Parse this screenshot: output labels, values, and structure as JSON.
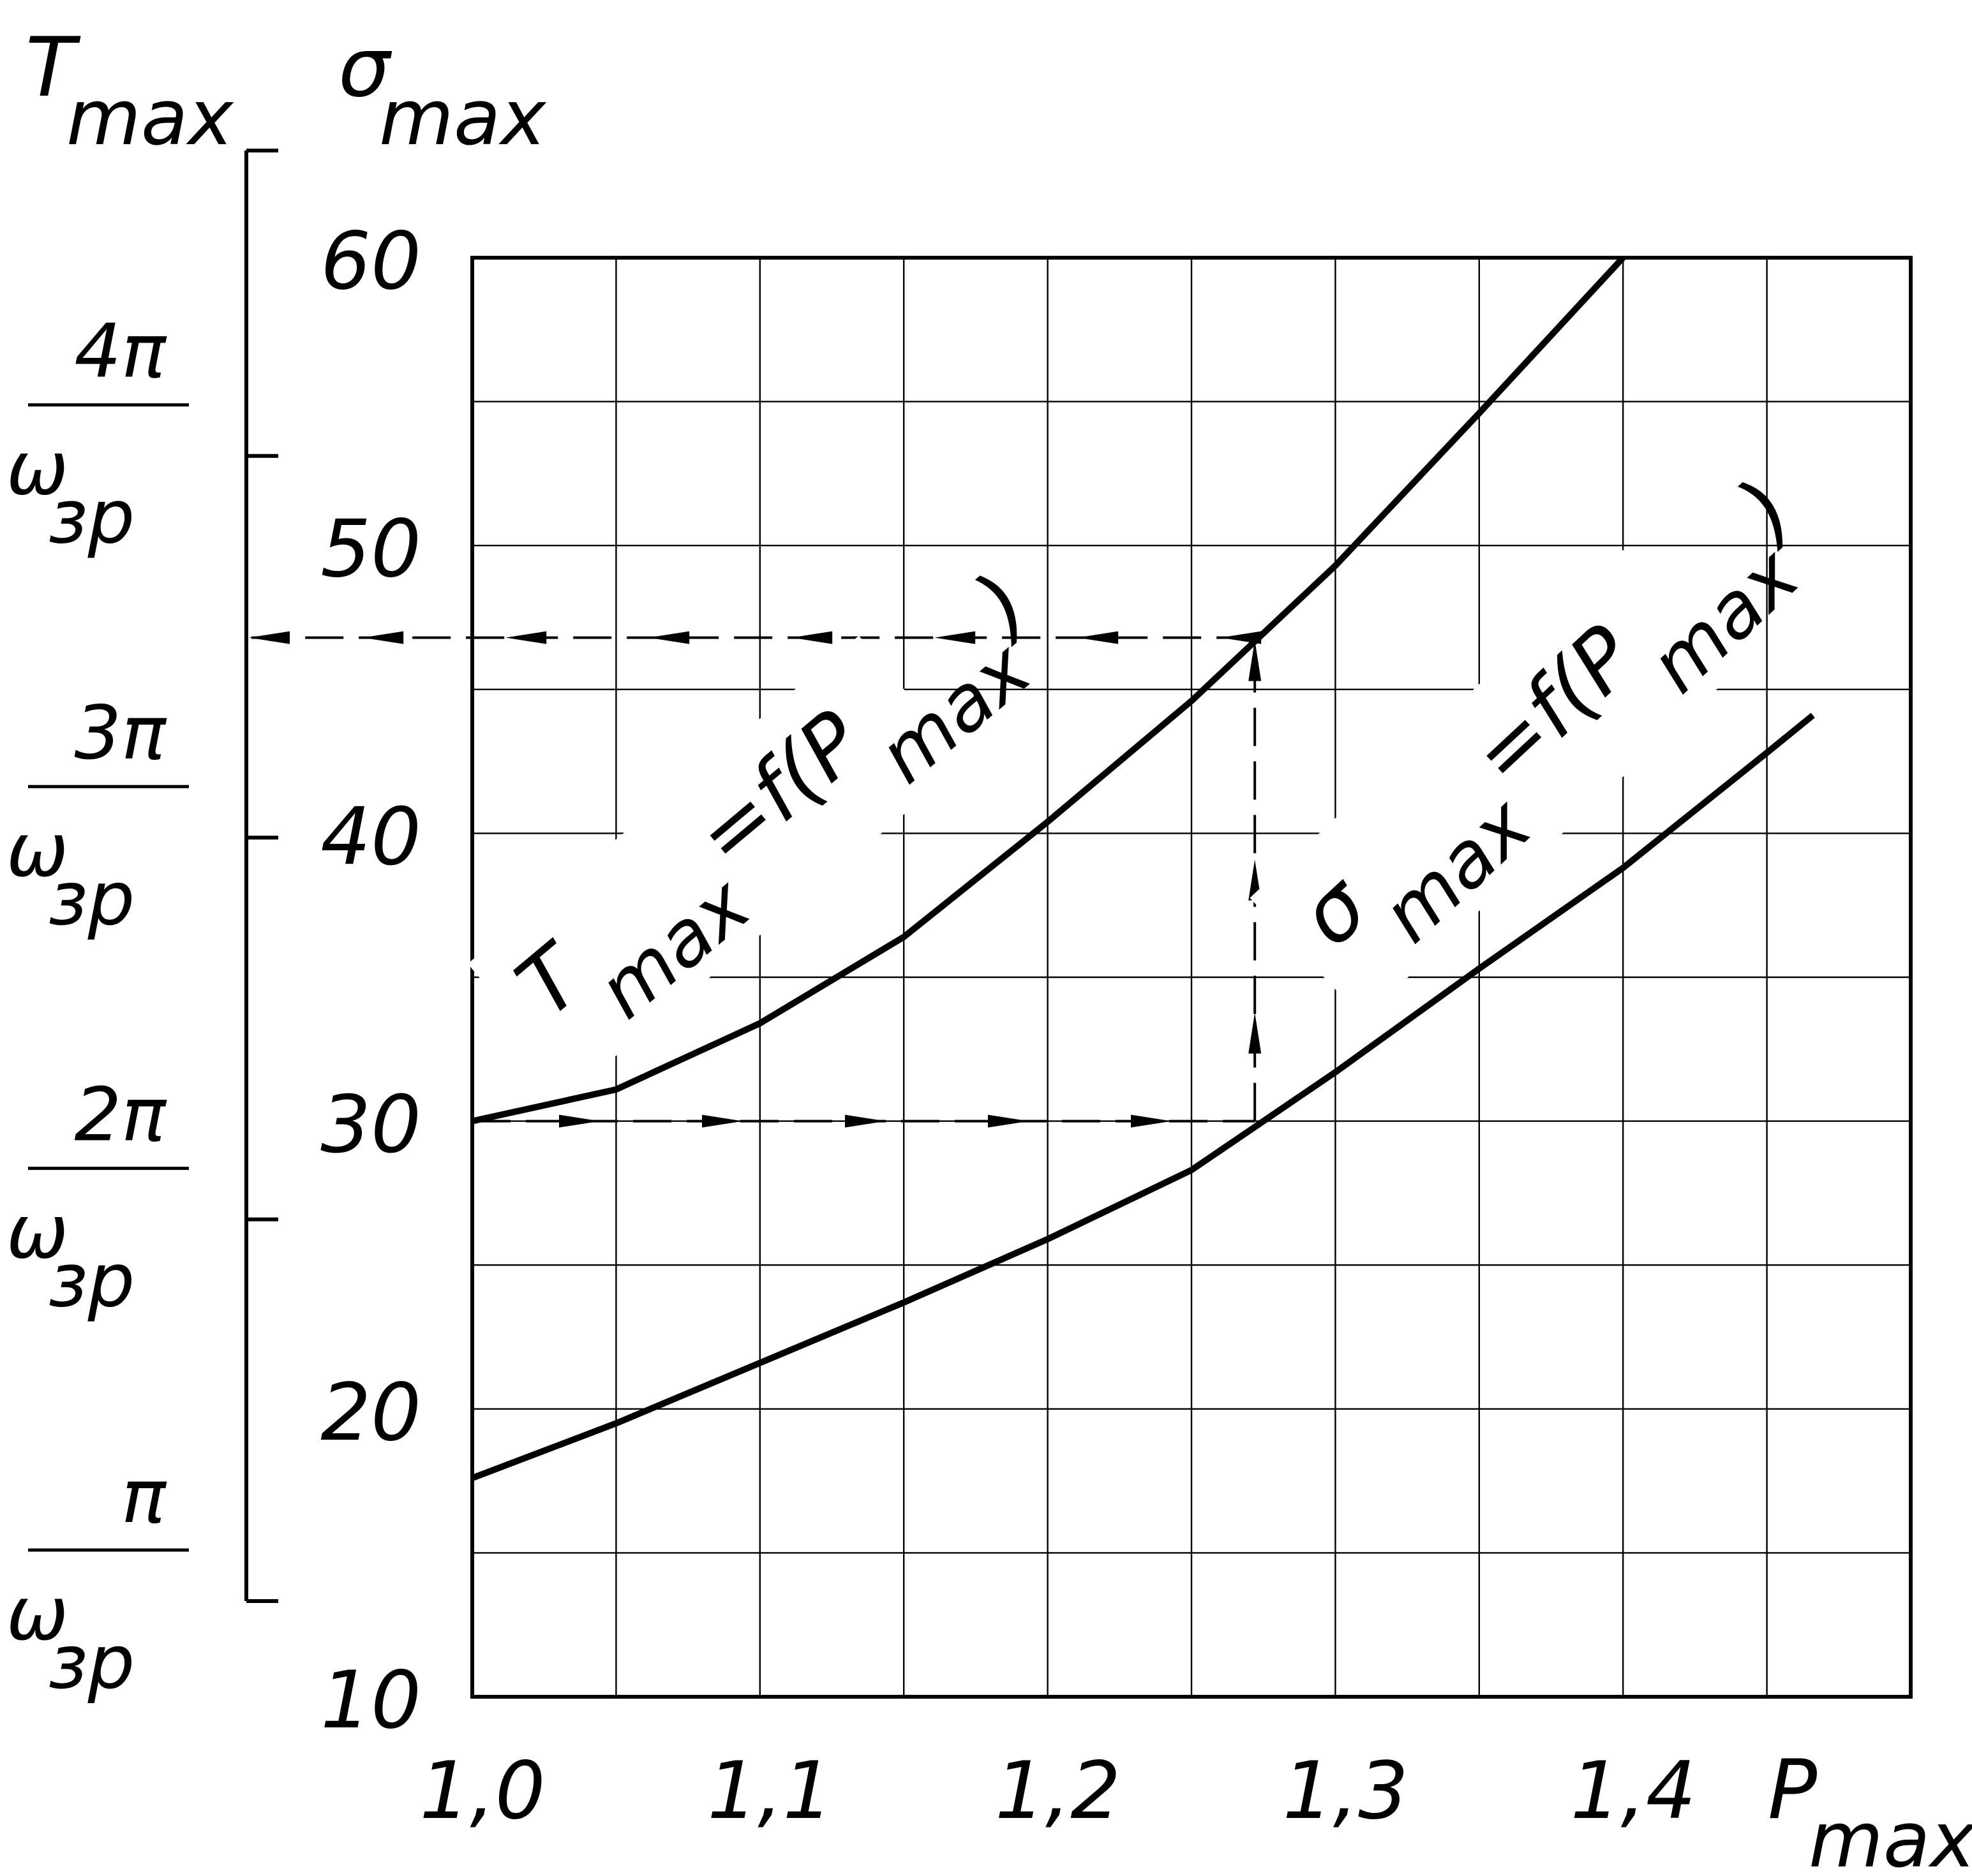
{
  "chart_data": {
    "type": "line",
    "xlabel": {
      "text": "P",
      "subscript": "max"
    },
    "ylabel": {
      "text": "σ",
      "subscript": "max"
    },
    "y2label": {
      "text": "T",
      "subscript": "max"
    },
    "xlim": [
      1.0,
      1.5
    ],
    "ylim": [
      10,
      60
    ],
    "y2lim": [
      1,
      4.8
    ],
    "xticks": [
      {
        "value": 1.0,
        "label": "1,0"
      },
      {
        "value": 1.1,
        "label": "1,1"
      },
      {
        "value": 1.2,
        "label": "1,2"
      },
      {
        "value": 1.3,
        "label": "1,3"
      },
      {
        "value": 1.4,
        "label": "1,4"
      }
    ],
    "xgrid": [
      1.05,
      1.15,
      1.25,
      1.35,
      1.45
    ],
    "yticks": [
      10,
      20,
      30,
      40,
      50,
      60
    ],
    "ygrid": [
      15,
      25,
      35,
      45,
      55
    ],
    "y2ticks": [
      {
        "value": 1,
        "label": "π"
      },
      {
        "value": 2,
        "label": "2π"
      },
      {
        "value": 3,
        "label": "3π"
      },
      {
        "value": 4,
        "label": "4π"
      }
    ],
    "y2_tick_unit": {
      "text": "ω",
      "subscript": "зр"
    },
    "grid": true,
    "series": [
      {
        "color": "#000000",
        "x": [
          1.0,
          1.05,
          1.1,
          1.15,
          1.2,
          1.25,
          1.3,
          1.35,
          1.4
        ],
        "values": [
          30,
          31.1,
          33.4,
          36.4,
          40.4,
          44.6,
          49.3,
          54.6,
          60
        ]
      },
      {
        "color": "#000000",
        "x": [
          1.0,
          1.05,
          1.1,
          1.15,
          1.2,
          1.25,
          1.3,
          1.35,
          1.4,
          1.45,
          1.466
        ],
        "values": [
          17.6,
          19.5,
          21.6,
          23.7,
          25.9,
          28.3,
          31.7,
          35.3,
          38.8,
          42.8,
          44.1
        ]
      }
    ],
    "annotations": [
      {
        "parts": [
          "T",
          "max",
          "=f(P",
          "max",
          ")"
        ]
      },
      {
        "parts": [
          "σ",
          "max",
          "=f(P",
          "max",
          ")"
        ]
      }
    ],
    "guide": {
      "x": 1.272,
      "y_start": 30,
      "y_end": 46.8
    }
  }
}
